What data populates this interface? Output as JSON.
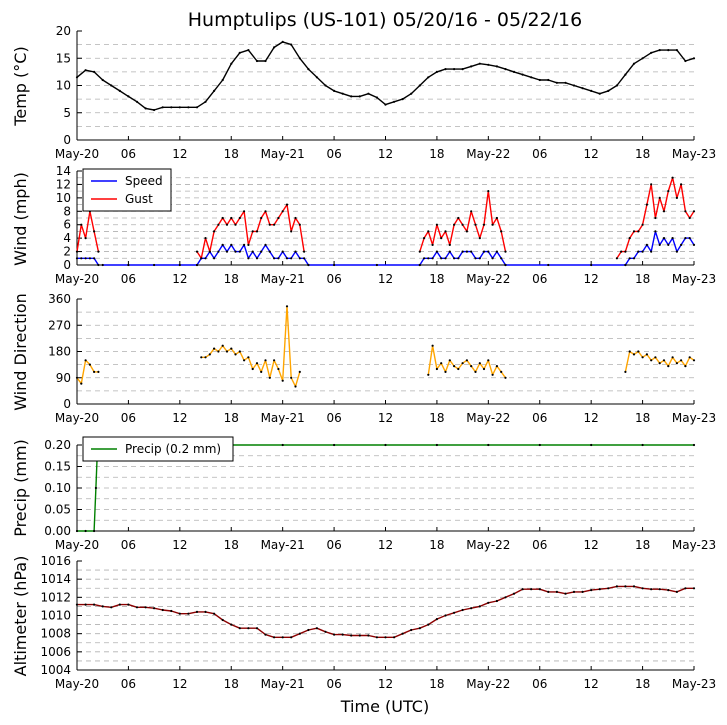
{
  "title": "Humptulips (US-101) 05/20/16 - 05/22/16",
  "x_axis_label": "Time (UTC)",
  "x_tick_labels": [
    "May-20",
    "06",
    "12",
    "18",
    "May-21",
    "06",
    "12",
    "18",
    "May-22",
    "06",
    "12",
    "18",
    "May-23"
  ],
  "colors": {
    "temp": "#000000",
    "speed": "#0000ff",
    "gust": "#ff0000",
    "direction": "#ffa500",
    "precip": "#008000",
    "altimeter": "#8b0000",
    "grid": "#b0b0b0"
  },
  "chart_data": [
    {
      "type": "line",
      "panel": "temperature",
      "ylabel": "Temp (°C)",
      "ylim": [
        0,
        20
      ],
      "yticks": [
        "0",
        "5",
        "10",
        "15",
        "20"
      ],
      "x_unit": "hours since 2016-05-20 00:00 UTC",
      "xlim": [
        0,
        72
      ],
      "series": [
        {
          "name": "Temp",
          "x": [
            0,
            1,
            2,
            3,
            4,
            5,
            6,
            7,
            8,
            9,
            10,
            11,
            12,
            13,
            14,
            15,
            16,
            17,
            18,
            19,
            20,
            21,
            22,
            23,
            24,
            25,
            26,
            27,
            28,
            29,
            30,
            31,
            32,
            33,
            34,
            35,
            36,
            37,
            38,
            39,
            40,
            41,
            42,
            43,
            44,
            45,
            46,
            47,
            48,
            49,
            50,
            51,
            52,
            53,
            54,
            55,
            56,
            57,
            58,
            59,
            60,
            61,
            62,
            63,
            64,
            65,
            66,
            67,
            68,
            69,
            70,
            71,
            72
          ],
          "values": [
            11.5,
            12.8,
            12.5,
            11.0,
            10.0,
            9.0,
            8.0,
            7.0,
            5.8,
            5.5,
            6.0,
            6.0,
            6.0,
            6.0,
            6.0,
            7.0,
            9.0,
            11.0,
            14.0,
            16.0,
            16.5,
            14.5,
            14.5,
            17.0,
            18.0,
            17.5,
            15.0,
            13.0,
            11.5,
            10.0,
            9.0,
            8.5,
            8.0,
            8.0,
            8.5,
            7.8,
            6.5,
            7.0,
            7.5,
            8.5,
            10.0,
            11.5,
            12.5,
            13.0,
            13.0,
            13.0,
            13.5,
            14.0,
            13.8,
            13.5,
            13.0,
            12.5,
            12.0,
            11.5,
            11.0,
            11.0,
            10.5,
            10.5,
            10.0,
            9.5,
            9.0,
            8.5,
            9.0,
            10.0,
            12.0,
            14.0,
            15.0,
            16.0,
            16.5,
            16.5,
            16.5,
            14.5,
            15.0
          ]
        }
      ]
    },
    {
      "type": "line",
      "panel": "wind",
      "ylabel": "Wind (mph)",
      "ylim": [
        0,
        14
      ],
      "yticks": [
        "0",
        "2",
        "4",
        "6",
        "8",
        "10",
        "12",
        "14"
      ],
      "legend": "top-left",
      "series": [
        {
          "name": "Speed",
          "segments": [
            {
              "x": [
                0,
                0.5,
                1,
                1.5,
                2,
                2.5
              ],
              "values": [
                1,
                1,
                1,
                1,
                1,
                0
              ]
            },
            {
              "x": [
                3,
                6,
                9,
                12,
                14
              ],
              "values": [
                0,
                0,
                0,
                0,
                0
              ]
            },
            {
              "x": [
                14,
                14.5,
                15,
                15.5,
                16,
                16.5,
                17,
                17.5,
                18,
                18.5,
                19,
                19.5,
                20,
                20.5,
                21,
                21.5,
                22,
                22.5,
                23,
                23.5,
                24,
                24.5,
                25,
                25.5,
                26,
                26.5,
                27
              ],
              "values": [
                0,
                1,
                1,
                2,
                1,
                2,
                3,
                2,
                3,
                2,
                2,
                3,
                1,
                2,
                1,
                2,
                3,
                2,
                1,
                1,
                2,
                1,
                1,
                2,
                1,
                1,
                0
              ]
            },
            {
              "x": [
                27,
                30,
                35,
                40
              ],
              "values": [
                0,
                0,
                0,
                0
              ]
            },
            {
              "x": [
                40,
                40.5,
                41,
                41.5,
                42,
                42.5,
                43,
                43.5,
                44,
                44.5,
                45,
                45.5,
                46,
                46.5,
                47,
                47.5,
                48,
                48.5,
                49,
                49.5,
                50
              ],
              "values": [
                0,
                1,
                1,
                1,
                2,
                1,
                1,
                2,
                1,
                1,
                2,
                2,
                2,
                1,
                1,
                2,
                2,
                1,
                2,
                1,
                0
              ]
            },
            {
              "x": [
                50,
                55,
                60,
                64
              ],
              "values": [
                0,
                0,
                0,
                0
              ]
            },
            {
              "x": [
                64,
                64.5,
                65,
                65.5,
                66,
                66.5,
                67,
                67.5,
                68,
                68.5,
                69,
                69.5,
                70,
                70.5,
                71,
                71.5,
                72
              ],
              "values": [
                0,
                1,
                1,
                2,
                2,
                3,
                2,
                5,
                3,
                4,
                3,
                4,
                2,
                3,
                4,
                4,
                3
              ]
            }
          ]
        },
        {
          "name": "Gust",
          "segments": [
            {
              "x": [
                0,
                0.5,
                1,
                1.5,
                2,
                2.5
              ],
              "values": [
                2,
                6,
                4,
                8,
                5,
                2
              ]
            },
            {
              "x": [
                14,
                14.5,
                15,
                15.5,
                16,
                16.5,
                17,
                17.5,
                18,
                18.5,
                19,
                19.5,
                20,
                20.5,
                21,
                21.5,
                22,
                22.5,
                23,
                23.5,
                24,
                24.5,
                25,
                25.5,
                26,
                26.5
              ],
              "values": [
                2,
                1,
                4,
                2,
                5,
                6,
                7,
                6,
                7,
                6,
                7,
                8,
                3,
                5,
                5,
                7,
                8,
                6,
                6,
                7,
                8,
                9,
                5,
                7,
                6,
                2
              ]
            },
            {
              "x": [
                40,
                40.5,
                41,
                41.5,
                42,
                42.5,
                43,
                43.5,
                44,
                44.5,
                45,
                45.5,
                46,
                46.5,
                47,
                47.5,
                48,
                48.5,
                49,
                49.5,
                50
              ],
              "values": [
                2,
                4,
                5,
                3,
                6,
                4,
                5,
                3,
                6,
                7,
                6,
                5,
                8,
                6,
                4,
                6,
                11,
                6,
                7,
                5,
                2
              ]
            },
            {
              "x": [
                63,
                63.5,
                64,
                64.5,
                65,
                65.5,
                66,
                66.5,
                67,
                67.5,
                68,
                68.5,
                69,
                69.5,
                70,
                70.5,
                71,
                71.5,
                72
              ],
              "values": [
                1,
                2,
                2,
                4,
                5,
                5,
                6,
                9,
                12,
                7,
                10,
                8,
                11,
                13,
                10,
                12,
                8,
                7,
                8
              ]
            }
          ]
        }
      ]
    },
    {
      "type": "line",
      "panel": "wind_direction",
      "ylabel": "Wind Direction",
      "ylim": [
        0,
        360
      ],
      "yticks": [
        "0",
        "90",
        "180",
        "270",
        "360"
      ],
      "series": [
        {
          "name": "Direction",
          "segments": [
            {
              "x": [
                0,
                0.5,
                1,
                1.5,
                2,
                2.5
              ],
              "values": [
                90,
                70,
                150,
                135,
                110,
                110
              ]
            },
            {
              "x": [
                14.5,
                15,
                15.5,
                16,
                16.5,
                17,
                17.5,
                18,
                18.5,
                19,
                19.5,
                20,
                20.5,
                21,
                21.5,
                22,
                22.5,
                23,
                23.5,
                24,
                24.5,
                25,
                25.5,
                26
              ],
              "values": [
                160,
                160,
                170,
                190,
                180,
                200,
                180,
                190,
                170,
                180,
                150,
                160,
                120,
                140,
                110,
                150,
                90,
                150,
                120,
                80,
                335,
                90,
                60,
                110
              ]
            },
            {
              "x": [
                41,
                41.5,
                42,
                42.5,
                43,
                43.5,
                44,
                44.5,
                45,
                45.5,
                46,
                46.5,
                47,
                47.5,
                48,
                48.5,
                49,
                49.5,
                50
              ],
              "values": [
                100,
                200,
                120,
                140,
                110,
                150,
                130,
                120,
                140,
                150,
                130,
                110,
                140,
                120,
                150,
                100,
                130,
                110,
                90
              ]
            },
            {
              "x": [
                64,
                64.5,
                65,
                65.5,
                66,
                66.5,
                67,
                67.5,
                68,
                68.5,
                69,
                69.5,
                70,
                70.5,
                71,
                71.5,
                72
              ],
              "values": [
                110,
                180,
                170,
                180,
                160,
                170,
                150,
                160,
                140,
                150,
                130,
                160,
                140,
                150,
                130,
                160,
                150
              ]
            }
          ]
        }
      ]
    },
    {
      "type": "line",
      "panel": "precip",
      "ylabel": "Precip (mm)",
      "ylim": [
        0,
        0.2
      ],
      "yticks": [
        "0.00",
        "0.05",
        "0.10",
        "0.15",
        "0.20"
      ],
      "legend": "top-left",
      "series": [
        {
          "name": "Precip (0.2 mm)",
          "x": [
            0,
            1,
            2,
            2.2,
            2.4,
            6,
            12,
            18,
            24,
            30,
            36,
            42,
            48,
            54,
            60,
            66,
            72
          ],
          "values": [
            0,
            0,
            0,
            0.1,
            0.2,
            0.2,
            0.2,
            0.2,
            0.2,
            0.2,
            0.2,
            0.2,
            0.2,
            0.2,
            0.2,
            0.2,
            0.2
          ]
        }
      ]
    },
    {
      "type": "line",
      "panel": "altimeter",
      "ylabel": "Altimeter (hPa)",
      "ylim": [
        1004,
        1016
      ],
      "yticks": [
        "1004",
        "1006",
        "1008",
        "1010",
        "1012",
        "1014",
        "1016"
      ],
      "series": [
        {
          "name": "Altimeter",
          "x": [
            0,
            1,
            2,
            3,
            4,
            5,
            6,
            7,
            8,
            9,
            10,
            11,
            12,
            13,
            14,
            15,
            16,
            17,
            18,
            19,
            20,
            21,
            22,
            23,
            24,
            25,
            26,
            27,
            28,
            29,
            30,
            31,
            32,
            33,
            34,
            35,
            36,
            37,
            38,
            39,
            40,
            41,
            42,
            43,
            44,
            45,
            46,
            47,
            48,
            49,
            50,
            51,
            52,
            53,
            54,
            55,
            56,
            57,
            58,
            59,
            60,
            61,
            62,
            63,
            64,
            65,
            66,
            67,
            68,
            69,
            70,
            71,
            72
          ],
          "values": [
            1011.2,
            1011.2,
            1011.2,
            1011.0,
            1010.9,
            1011.2,
            1011.2,
            1010.9,
            1010.9,
            1010.8,
            1010.6,
            1010.5,
            1010.2,
            1010.2,
            1010.4,
            1010.4,
            1010.2,
            1009.5,
            1009.0,
            1008.6,
            1008.6,
            1008.6,
            1007.9,
            1007.6,
            1007.6,
            1007.6,
            1008.0,
            1008.4,
            1008.6,
            1008.2,
            1007.9,
            1007.9,
            1007.8,
            1007.8,
            1007.8,
            1007.6,
            1007.6,
            1007.6,
            1008.0,
            1008.4,
            1008.6,
            1009.0,
            1009.6,
            1010.0,
            1010.3,
            1010.6,
            1010.8,
            1011.0,
            1011.4,
            1011.6,
            1012.0,
            1012.4,
            1012.9,
            1012.9,
            1012.9,
            1012.6,
            1012.6,
            1012.4,
            1012.6,
            1012.6,
            1012.8,
            1012.9,
            1013.0,
            1013.2,
            1013.2,
            1013.2,
            1013.0,
            1012.9,
            1012.9,
            1012.8,
            1012.6,
            1013.0,
            1013.0
          ]
        }
      ]
    }
  ]
}
